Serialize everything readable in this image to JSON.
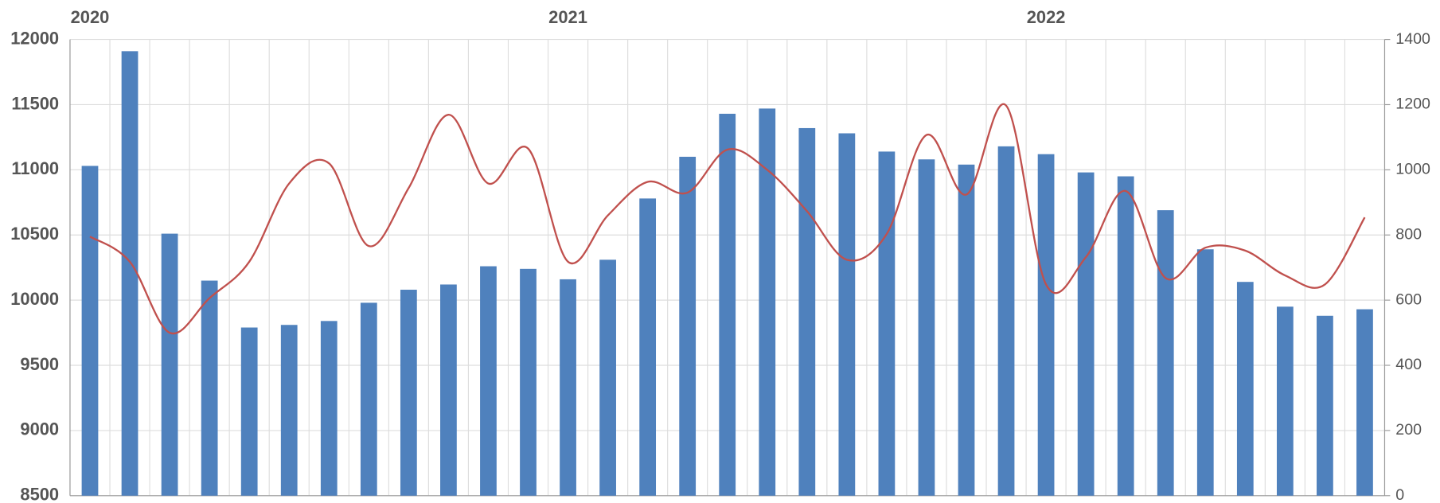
{
  "chart_data": {
    "type": "bar-line",
    "categories": [
      "2020",
      null,
      null,
      null,
      null,
      null,
      null,
      null,
      null,
      null,
      null,
      null,
      "2021",
      null,
      null,
      null,
      null,
      null,
      null,
      null,
      null,
      null,
      null,
      null,
      "2022",
      null,
      null,
      null,
      null,
      null,
      null,
      null,
      null
    ],
    "series": [
      {
        "color": "#4f81bd",
        "type": "bar",
        "axis": "y",
        "values": [
          11030,
          11910,
          10510,
          10150,
          9790,
          9810,
          9840,
          9980,
          10080,
          10120,
          10260,
          10240,
          10160,
          10310,
          10780,
          11100,
          11430,
          11470,
          11320,
          11280,
          11140,
          11080,
          11040,
          11180,
          11120,
          10980,
          10950,
          10690,
          10390,
          10140,
          9950,
          9880,
          9930
        ]
      },
      {
        "color": "#c0504d",
        "type": "line",
        "axis": "y2",
        "values": [
          795,
          718,
          500,
          606,
          718,
          958,
          1020,
          766,
          944,
          1169,
          958,
          1065,
          718,
          860,
          963,
          930,
          1062,
          1000,
          873,
          724,
          803,
          1107,
          924,
          1197,
          648,
          732,
          935,
          668,
          761,
          752,
          676,
          648,
          854
        ]
      }
    ],
    "ylim": [
      8500,
      12000
    ],
    "yticks": [
      8500,
      9000,
      9500,
      10000,
      10500,
      11000,
      11500,
      12000
    ],
    "y2lim": [
      0,
      1400
    ],
    "y2ticks": [
      0,
      200,
      400,
      600,
      800,
      1000,
      1200,
      1400
    ],
    "grid": true
  }
}
